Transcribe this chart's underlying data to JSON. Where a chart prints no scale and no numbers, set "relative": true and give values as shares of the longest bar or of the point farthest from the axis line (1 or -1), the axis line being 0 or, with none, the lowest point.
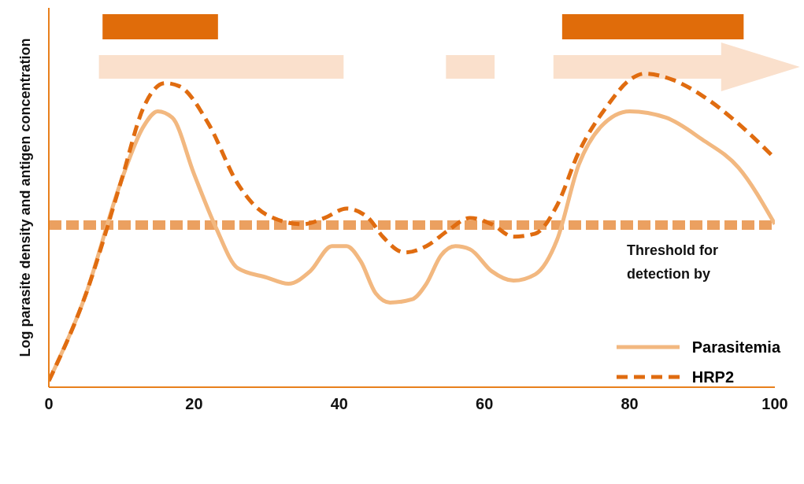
{
  "chart_data": {
    "type": "line",
    "relative": true,
    "ylabel": "Log parasite density and antigen concentration",
    "xlim": [
      0,
      100
    ],
    "xticks": [
      0,
      20,
      40,
      60,
      80,
      100
    ],
    "grid": false,
    "legend": "bottom right",
    "marker": "none",
    "series": [
      {
        "name": "Parasitemia",
        "color": "#f2b880",
        "line_style": "solid",
        "x": [
          0,
          5,
          10,
          13,
          15,
          17,
          20,
          23,
          26,
          30,
          33,
          36,
          39,
          41,
          43,
          45,
          47,
          50,
          52,
          54,
          56,
          58,
          61,
          64,
          67,
          70,
          73,
          76,
          80,
          85,
          90,
          95,
          100
        ],
        "values": [
          0.02,
          0.29,
          0.66,
          0.83,
          0.88,
          0.86,
          0.68,
          0.51,
          0.38,
          0.35,
          0.33,
          0.37,
          0.45,
          0.45,
          0.4,
          0.3,
          0.27,
          0.28,
          0.33,
          0.42,
          0.45,
          0.44,
          0.37,
          0.34,
          0.36,
          0.47,
          0.71,
          0.83,
          0.88,
          0.86,
          0.79,
          0.7,
          0.52
        ]
      },
      {
        "name": "HRP2",
        "color": "#e06c10",
        "line_style": "dashed",
        "x": [
          0,
          5,
          10,
          13,
          16,
          18,
          22,
          26,
          30,
          35,
          38,
          41,
          44,
          46,
          49,
          52,
          55,
          58,
          61,
          64,
          67,
          70,
          73,
          77,
          80,
          82,
          86,
          90,
          95,
          100
        ],
        "values": [
          0.02,
          0.29,
          0.66,
          0.89,
          0.97,
          0.96,
          0.84,
          0.65,
          0.55,
          0.52,
          0.54,
          0.57,
          0.54,
          0.48,
          0.43,
          0.45,
          0.5,
          0.54,
          0.52,
          0.48,
          0.49,
          0.58,
          0.75,
          0.9,
          0.98,
          1.0,
          0.98,
          0.93,
          0.84,
          0.73
        ]
      }
    ],
    "ref_lines": [
      {
        "axis": "y",
        "value": 0.517,
        "label": "Threshold for detection by",
        "color": "#eba060",
        "line_style": "dashed"
      }
    ]
  }
}
